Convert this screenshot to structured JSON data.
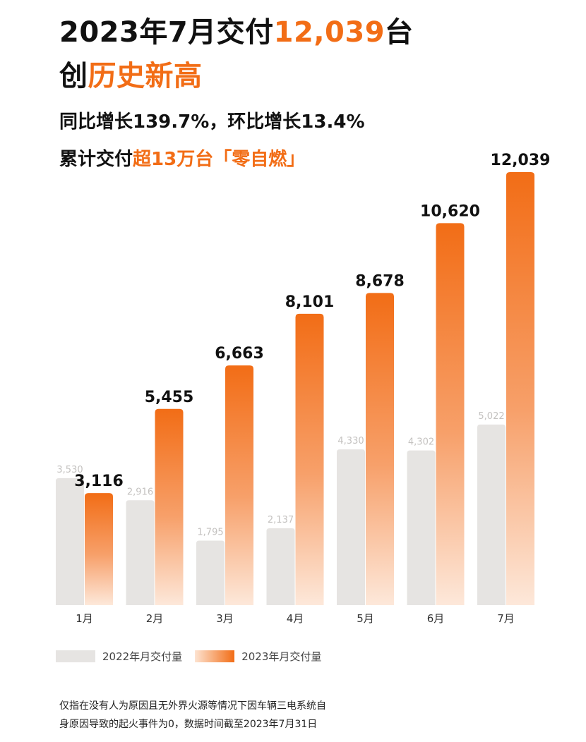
{
  "header": {
    "line1_prefix": "2023年7月交付",
    "line1_highlight": "12,039",
    "line1_suffix": "台",
    "line2_prefix": "创",
    "line2_highlight": "历史新高",
    "line3": "同比增长139.7%，环比增长13.4%",
    "line4_prefix": "累计交付",
    "line4_highlight": "超13万台「零自燃」"
  },
  "colors": {
    "accent": "#f26d16",
    "bar_2022": "#e6e4e2",
    "bar_2023_top": "#f26d16",
    "bar_2023_bottom": "#fde8da"
  },
  "chart_data": {
    "type": "bar",
    "categories": [
      "1月",
      "2月",
      "3月",
      "4月",
      "5月",
      "6月",
      "7月"
    ],
    "series": [
      {
        "name": "2022年月交付量",
        "values": [
          3530,
          2916,
          1795,
          2137,
          4330,
          4302,
          5022
        ],
        "labels": [
          "3,530",
          "2,916",
          "1,795",
          "2,137",
          "4,330",
          "4,302",
          "5,022"
        ]
      },
      {
        "name": "2023年月交付量",
        "values": [
          3116,
          5455,
          6663,
          8101,
          8678,
          10620,
          12039
        ],
        "labels": [
          "3,116",
          "5,455",
          "6,663",
          "8,101",
          "8,678",
          "10,620",
          "12,039"
        ]
      }
    ],
    "legend": "bottom-left",
    "grid": false
  },
  "legend": {
    "label_2022": "2022年月交付量",
    "label_2023": "2023年月交付量"
  },
  "footnote": {
    "line1": "仅指在没有人为原因且无外界火源等情况下因车辆三电系统自",
    "line2": "身原因导致的起火事件为0，数据时间截至2023年7月31日"
  }
}
